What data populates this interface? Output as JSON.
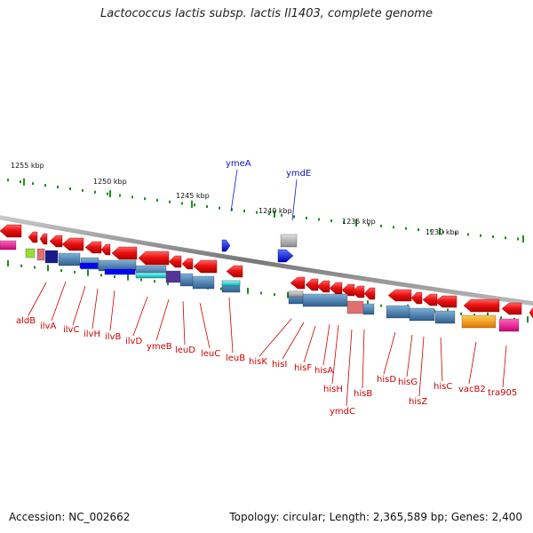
{
  "title": "Lactococcus lactis subsp. lactis Il1403, complete genome",
  "footer": {
    "accession": "Accession: NC_002662",
    "summary": "Topology: circular; Length: 2,365,589 bp; Genes: 2,400"
  },
  "ticks": [
    {
      "label": "1255 kbp"
    },
    {
      "label": "1250 kbp"
    },
    {
      "label": "1245 kbp"
    },
    {
      "label": "1240 kbp"
    },
    {
      "label": "1235 kbp"
    },
    {
      "label": "1230 kbp"
    }
  ],
  "genes_below": [
    "aldB",
    "ilvA",
    "ilvC",
    "ilvH",
    "ilvB",
    "ilvD",
    "ymeB",
    "leuD",
    "leuC",
    "leuB",
    "hisK",
    "hisI",
    "hisF",
    "hisA",
    "hisH",
    "ymdC",
    "hisB",
    "hisD",
    "hisG",
    "hisZ",
    "hisC",
    "vacB2",
    "tra905"
  ],
  "genes_above": [
    "ymeA",
    "ymdE"
  ],
  "colors": {
    "forward_arrow": "#ee1111",
    "reverse_arrow": "#1133ee",
    "label_red": "#cc0000",
    "label_blue": "#1111cc",
    "backbone": "#888888",
    "tick": "#228b22",
    "block_steel": "#4a82b4",
    "block_cyan": "#22cccc",
    "block_gray": "#aaaaaa",
    "block_orange": "#ff9900",
    "block_magenta": "#ff1493",
    "block_navy": "#1a1a8c",
    "block_pink": "#e07070",
    "block_purple": "#553399",
    "block_lime": "#99dd33"
  }
}
